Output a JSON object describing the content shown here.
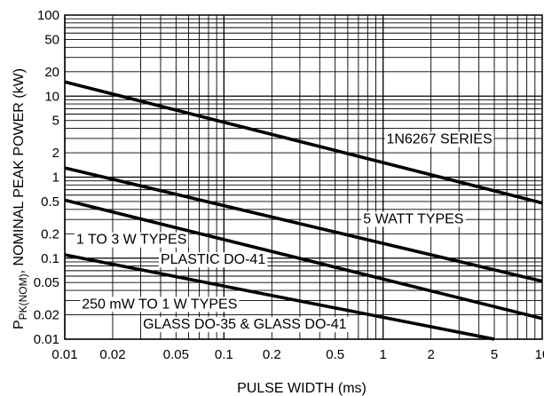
{
  "chart_data": {
    "type": "line",
    "xscale": "log",
    "yscale": "log",
    "xlim": [
      0.01,
      10
    ],
    "ylim": [
      0.01,
      100
    ],
    "grid": true,
    "xlabel": "PULSE WIDTH (ms)",
    "ylabel": {
      "main": "P",
      "sub": "PK(NOM)",
      "rest": ", NOMINAL PEAK POWER (kW)"
    },
    "x_ticks": [
      0.01,
      0.02,
      0.05,
      0.1,
      0.2,
      0.5,
      1,
      2,
      5,
      10
    ],
    "x_tick_labels": [
      "0.01",
      "0.02",
      "0.05",
      "0.1",
      "0.2",
      "0.5",
      "1",
      "2",
      "5",
      "10"
    ],
    "y_ticks": [
      0.01,
      0.02,
      0.05,
      0.1,
      0.2,
      0.5,
      1,
      2,
      5,
      10,
      20,
      50,
      100
    ],
    "y_tick_labels": [
      "0.01",
      "0.02",
      "0.05",
      "0.1",
      "0.2",
      "0.5",
      "1",
      "2",
      "5",
      "10",
      "20",
      "50",
      "100"
    ],
    "series": [
      {
        "x": [
          0.01,
          10
        ],
        "y": [
          15,
          0.48
        ]
      },
      {
        "x": [
          0.01,
          10
        ],
        "y": [
          1.3,
          0.052
        ]
      },
      {
        "x": [
          0.01,
          10
        ],
        "y": [
          0.52,
          0.018
        ]
      },
      {
        "x": [
          0.01,
          5
        ],
        "y": [
          0.11,
          0.01
        ]
      }
    ],
    "annotations": [
      {
        "text": "1N6267 SERIES",
        "x": 1.05,
        "y": 2.6
      },
      {
        "text": "5 WATT TYPES",
        "x": 0.75,
        "y": 0.27
      },
      {
        "text": "1 TO 3 W TYPES",
        "x": 0.0118,
        "y": 0.15
      },
      {
        "text": "PLASTIC DO-41",
        "x": 0.04,
        "y": 0.085
      },
      {
        "text": "250 mW TO 1 W TYPES",
        "x": 0.0128,
        "y": 0.024
      },
      {
        "text": "GLASS DO-35 & GLASS DO-41",
        "x": 0.031,
        "y": 0.0135
      }
    ]
  }
}
